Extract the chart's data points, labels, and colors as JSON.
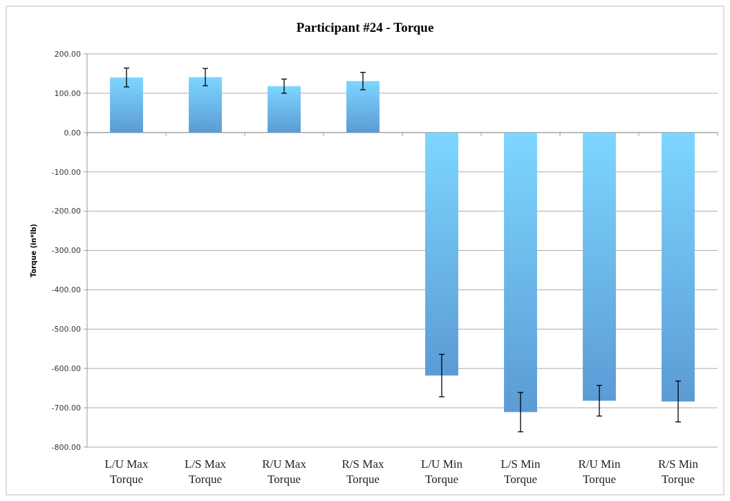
{
  "chart_data": {
    "type": "bar",
    "title": "Participant #24 - Torque",
    "ylabel": "Torque (in*lb)",
    "categories": [
      "L/U Max Torque",
      "L/S Max Torque",
      "R/U Max Torque",
      "R/S Max Torque",
      "L/U Min Torque",
      "L/S Min Torque",
      "R/U Min Torque",
      "R/S Min Torque"
    ],
    "values": [
      140,
      141,
      118,
      131,
      -618,
      -711,
      -682,
      -684
    ],
    "errors": [
      24,
      22,
      18,
      22,
      54,
      50,
      39,
      52
    ],
    "color": "#5b9bd5",
    "ylim": [
      -800,
      200
    ],
    "yticks": [
      {
        "value": 200,
        "label": "200.00"
      },
      {
        "value": 100,
        "label": "100.00"
      },
      {
        "value": 0,
        "label": "0.00"
      },
      {
        "value": -100,
        "label": "-100.00"
      },
      {
        "value": -200,
        "label": "-200.00"
      },
      {
        "value": -300,
        "label": "-300.00"
      },
      {
        "value": -400,
        "label": "-400.00"
      },
      {
        "value": -500,
        "label": "-500.00"
      },
      {
        "value": -600,
        "label": "-600.00"
      },
      {
        "value": -700,
        "label": "-700.00"
      },
      {
        "value": -800,
        "label": "-800.00"
      }
    ],
    "grid": "y"
  }
}
